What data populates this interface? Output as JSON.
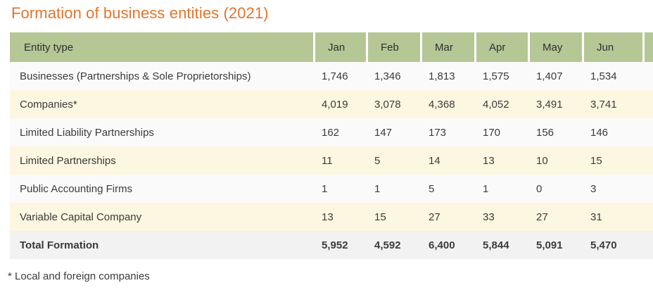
{
  "title": "Formation of business entities (2021)",
  "footnote": "* Local and foreign companies",
  "colors": {
    "title_orange": "#e2752e",
    "header_green": "#b5c795",
    "row_white": "#fafafa",
    "row_cream": "#fdf6e0",
    "total_row_gray": "#f2f2f3",
    "text": "#3b3b3b"
  },
  "table": {
    "entity_header": "Entity type",
    "month_headers": [
      "Jan",
      "Feb",
      "Mar",
      "Apr",
      "May",
      "Jun"
    ],
    "rows": [
      {
        "label": "Businesses (Partnerships & Sole Proprietorships)",
        "values": [
          "1,746",
          "1,346",
          "1,813",
          "1,575",
          "1,407",
          "1,534"
        ]
      },
      {
        "label": "Companies*",
        "values": [
          "4,019",
          "3,078",
          "4,368",
          "4,052",
          "3,491",
          "3,741"
        ]
      },
      {
        "label": "Limited Liability Partnerships",
        "values": [
          "162",
          "147",
          "173",
          "170",
          "156",
          "146"
        ]
      },
      {
        "label": "Limited Partnerships",
        "values": [
          "11",
          "5",
          "14",
          "13",
          "10",
          "15"
        ]
      },
      {
        "label": "Public Accounting Firms",
        "values": [
          "1",
          "1",
          "5",
          "1",
          "0",
          "3"
        ]
      },
      {
        "label": "Variable Capital Company",
        "values": [
          "13",
          "15",
          "27",
          "33",
          "27",
          "31"
        ]
      }
    ],
    "total_row": {
      "label": "Total Formation",
      "values": [
        "5,952",
        "4,592",
        "6,400",
        "5,844",
        "5,091",
        "5,470"
      ]
    }
  },
  "chart_data": {
    "type": "table",
    "title": "Formation of business entities (2021)",
    "columns": [
      "Entity type",
      "Jan",
      "Feb",
      "Mar",
      "Apr",
      "May",
      "Jun"
    ],
    "rows": [
      [
        "Businesses (Partnerships & Sole Proprietorships)",
        1746,
        1346,
        1813,
        1575,
        1407,
        1534
      ],
      [
        "Companies*",
        4019,
        3078,
        4368,
        4052,
        3491,
        3741
      ],
      [
        "Limited Liability Partnerships",
        162,
        147,
        173,
        170,
        156,
        146
      ],
      [
        "Limited Partnerships",
        11,
        5,
        14,
        13,
        10,
        15
      ],
      [
        "Public Accounting Firms",
        1,
        1,
        5,
        1,
        0,
        3
      ],
      [
        "Variable Capital Company",
        13,
        15,
        27,
        33,
        27,
        31
      ],
      [
        "Total Formation",
        5952,
        4592,
        6400,
        5844,
        5091,
        5470
      ]
    ],
    "footnote": "* Local and foreign companies"
  }
}
